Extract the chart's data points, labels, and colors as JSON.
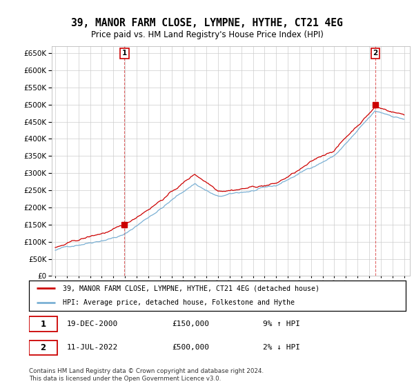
{
  "title": "39, MANOR FARM CLOSE, LYMPNE, HYTHE, CT21 4EG",
  "subtitle": "Price paid vs. HM Land Registry's House Price Index (HPI)",
  "ylim": [
    0,
    670000
  ],
  "yticks": [
    0,
    50000,
    100000,
    150000,
    200000,
    250000,
    300000,
    350000,
    400000,
    450000,
    500000,
    550000,
    600000,
    650000
  ],
  "legend_line1": "39, MANOR FARM CLOSE, LYMPNE, HYTHE, CT21 4EG (detached house)",
  "legend_line2": "HPI: Average price, detached house, Folkestone and Hythe",
  "price_color": "#cc0000",
  "hpi_color": "#7ab0d4",
  "transaction1_date": "19-DEC-2000",
  "transaction1_price": "£150,000",
  "transaction1_hpi": "9% ↑ HPI",
  "transaction2_date": "11-JUL-2022",
  "transaction2_price": "£500,000",
  "transaction2_hpi": "2% ↓ HPI",
  "footnote1": "Contains HM Land Registry data © Crown copyright and database right 2024.",
  "footnote2": "This data is licensed under the Open Government Licence v3.0.",
  "bg_color": "#ffffff",
  "grid_color": "#cccccc"
}
